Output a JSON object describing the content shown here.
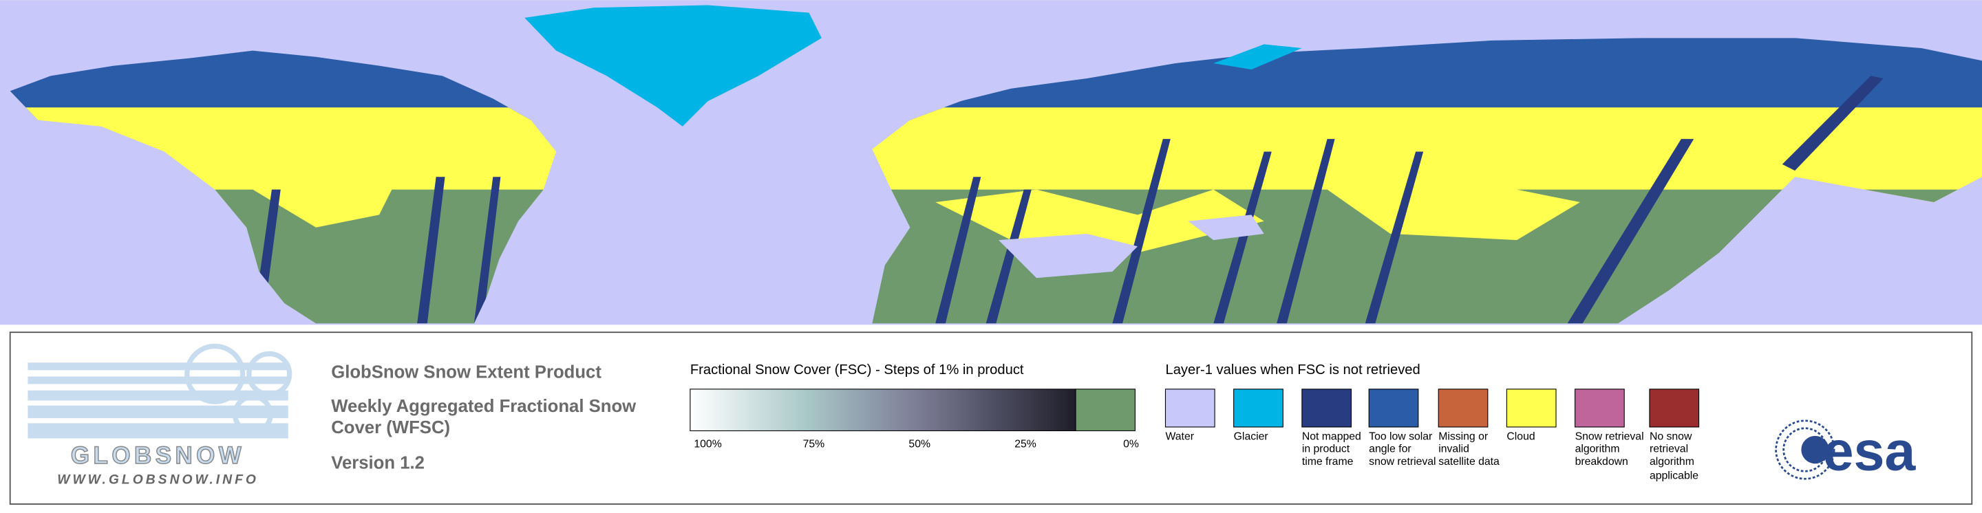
{
  "logo": {
    "name": "GLOBSNOW",
    "url": "WWW.GLOBSNOW.INFO"
  },
  "product": {
    "title": "GlobSnow Snow Extent Product",
    "subtitle": "Weekly Aggregated Fractional Snow Cover (WFSC)",
    "version": "Version 1.2"
  },
  "fsc_legend": {
    "title": "Fractional Snow Cover (FSC) - Steps of 1% in product",
    "labels": [
      "100%",
      "75%",
      "50%",
      "25%",
      "0%"
    ]
  },
  "layer1_legend": {
    "title": "Layer-1 values when FSC is not retrieved",
    "items": [
      {
        "label": "Water",
        "color": "#c8c8fa"
      },
      {
        "label": "Glacier",
        "color": "#00b4e6"
      },
      {
        "label": "Not mapped in product time frame",
        "color": "#283c82"
      },
      {
        "label": "Too low solar angle for snow retrieval",
        "color": "#2a5ca8"
      },
      {
        "label": "Missing or invalid satellite data",
        "color": "#c8643c"
      },
      {
        "label": "Cloud",
        "color": "#ffff50"
      },
      {
        "label": "Snow retrieval algorithm breakdown",
        "color": "#c0649c"
      },
      {
        "label": "No snow retrieval algorithm applicable",
        "color": "#9a2d2d"
      }
    ]
  },
  "esa_logo": "esa"
}
